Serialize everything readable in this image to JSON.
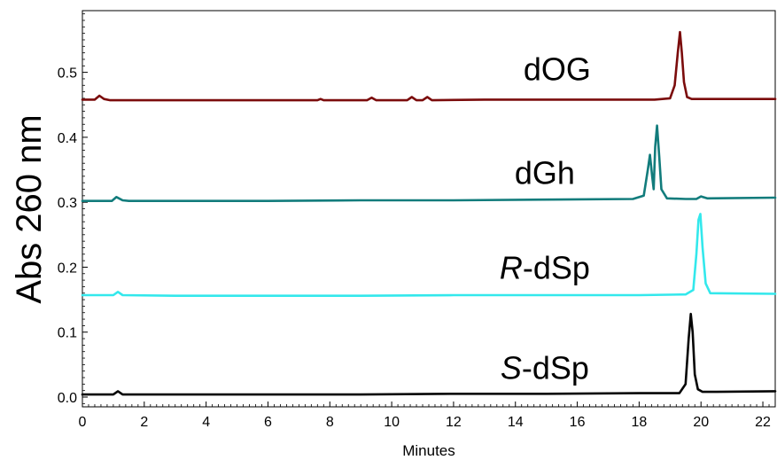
{
  "chart_data": {
    "type": "line",
    "xlabel": "Minutes",
    "ylabel": "Abs 260 nm",
    "xlim": [
      0,
      22.4
    ],
    "ylim": [
      -0.015,
      0.595
    ],
    "x_ticks": [
      0,
      2,
      4,
      6,
      8,
      10,
      12,
      14,
      16,
      18,
      20,
      22
    ],
    "x_tick_labels": [
      "0",
      "2",
      "4",
      "6",
      "8",
      "10",
      "12",
      "14",
      "16",
      "18",
      "20",
      "22"
    ],
    "y_ticks": [
      0.0,
      0.1,
      0.2,
      0.3,
      0.4,
      0.5
    ],
    "y_tick_labels": [
      "0.0",
      "0.1",
      "0.2",
      "0.3",
      "0.4",
      "0.5"
    ],
    "grid": false,
    "legend": "none",
    "series": [
      {
        "name": "dOG",
        "label_italic": "",
        "label_rest": "dOG",
        "color": "#7b0c0c",
        "x": [
          0,
          0.4,
          0.55,
          0.7,
          0.9,
          2,
          4,
          7.6,
          7.7,
          7.8,
          9.2,
          9.35,
          9.5,
          10.5,
          10.65,
          10.8,
          11.0,
          11.15,
          11.3,
          13,
          16,
          18.5,
          19.0,
          19.15,
          19.25,
          19.32,
          19.38,
          19.45,
          19.55,
          19.7,
          20.5,
          22.4
        ],
        "y": [
          0.458,
          0.458,
          0.464,
          0.459,
          0.457,
          0.457,
          0.457,
          0.457,
          0.459,
          0.457,
          0.457,
          0.461,
          0.457,
          0.457,
          0.462,
          0.457,
          0.457,
          0.462,
          0.457,
          0.458,
          0.458,
          0.458,
          0.46,
          0.48,
          0.53,
          0.562,
          0.53,
          0.485,
          0.462,
          0.459,
          0.459,
          0.459
        ]
      },
      {
        "name": "dGh",
        "label_italic": "",
        "label_rest": "dGh",
        "color": "#127c7c",
        "x": [
          0,
          0.95,
          1.1,
          1.3,
          1.5,
          3,
          6,
          9,
          12,
          15,
          17.8,
          18.15,
          18.28,
          18.35,
          18.42,
          18.47,
          18.52,
          18.58,
          18.65,
          18.72,
          18.9,
          19.5,
          19.85,
          20.0,
          20.2,
          22.4
        ],
        "y": [
          0.302,
          0.302,
          0.308,
          0.303,
          0.302,
          0.302,
          0.302,
          0.303,
          0.303,
          0.304,
          0.305,
          0.31,
          0.35,
          0.373,
          0.34,
          0.32,
          0.385,
          0.418,
          0.37,
          0.32,
          0.306,
          0.305,
          0.305,
          0.309,
          0.306,
          0.307
        ]
      },
      {
        "name": "R-dSp",
        "label_italic": "R",
        "label_rest": "-dSp",
        "color": "#33e8ec",
        "x": [
          0,
          1.0,
          1.15,
          1.3,
          3,
          6,
          9,
          12,
          15,
          18,
          19.5,
          19.75,
          19.85,
          19.92,
          19.98,
          20.05,
          20.15,
          20.3,
          22.4
        ],
        "y": [
          0.157,
          0.157,
          0.162,
          0.157,
          0.156,
          0.156,
          0.156,
          0.157,
          0.157,
          0.157,
          0.158,
          0.165,
          0.22,
          0.273,
          0.282,
          0.23,
          0.175,
          0.16,
          0.159
        ]
      },
      {
        "name": "S-dSp",
        "label_italic": "S",
        "label_rest": "-dSp",
        "color": "#050505",
        "x": [
          0,
          1.0,
          1.15,
          1.3,
          3,
          6,
          9,
          12,
          15,
          18,
          19.3,
          19.5,
          19.6,
          19.67,
          19.73,
          19.8,
          19.9,
          20.05,
          20.5,
          22.4
        ],
        "y": [
          0.004,
          0.004,
          0.009,
          0.004,
          0.004,
          0.004,
          0.004,
          0.005,
          0.005,
          0.006,
          0.006,
          0.02,
          0.09,
          0.128,
          0.1,
          0.035,
          0.012,
          0.008,
          0.008,
          0.009
        ]
      }
    ]
  }
}
